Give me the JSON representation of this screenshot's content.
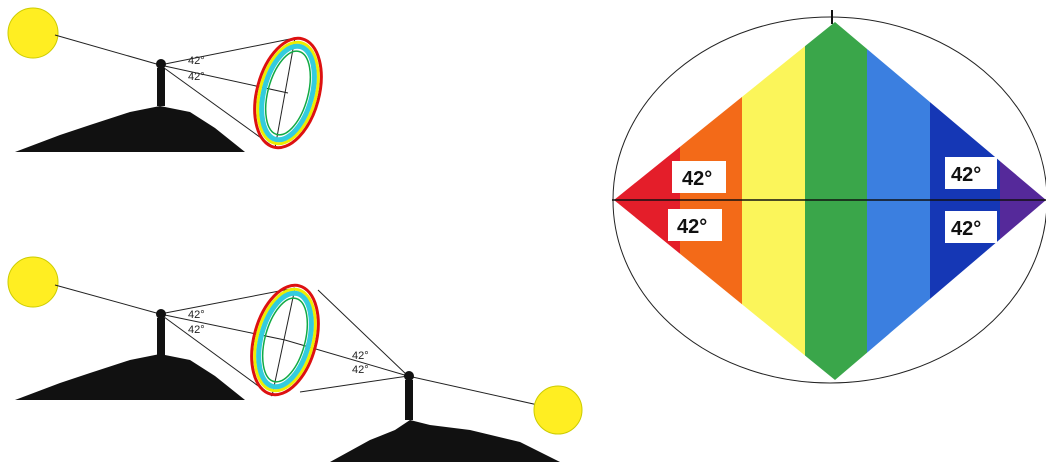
{
  "top_diagram": {
    "angle_labels": [
      "42°",
      "42°"
    ]
  },
  "bottom_diagram": {
    "angle_labels": [
      "42°",
      "42°",
      "42°",
      "42°"
    ]
  },
  "rainbow_diamond": {
    "angle_labels": [
      "42°",
      "42°",
      "42°",
      "42°"
    ]
  }
}
